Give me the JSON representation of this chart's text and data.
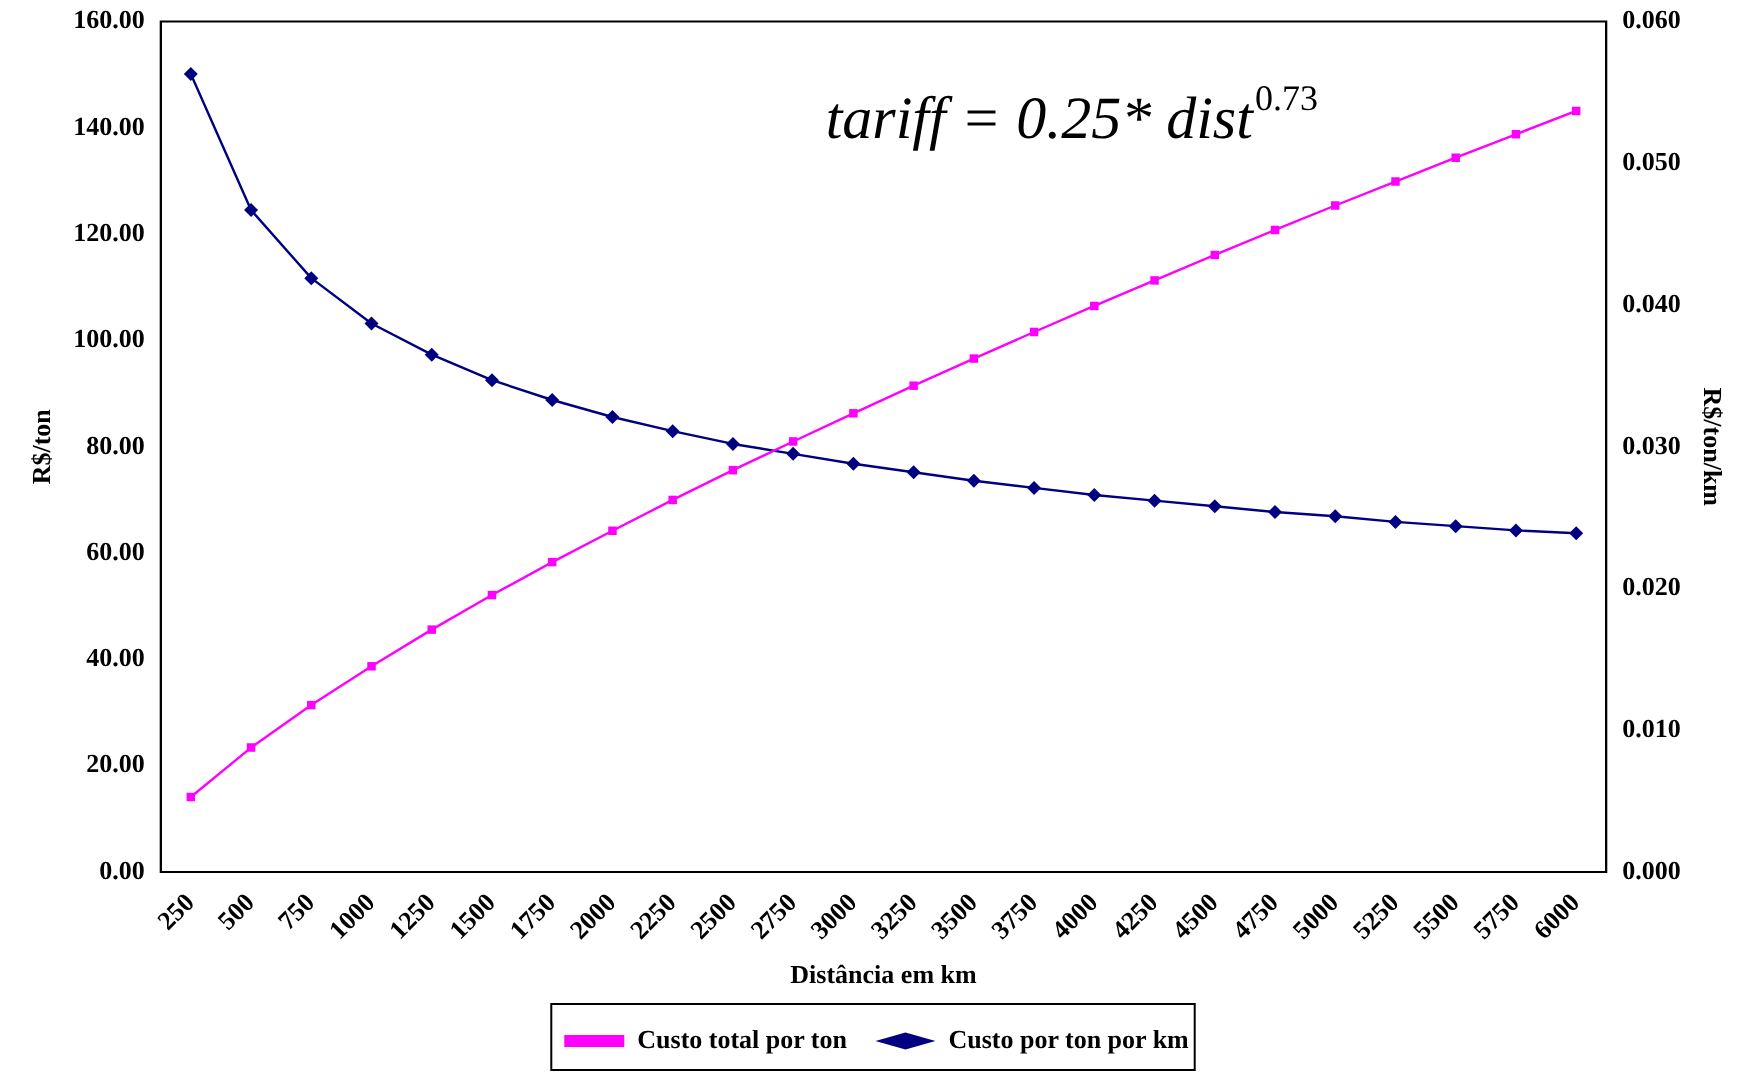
{
  "chart_data": {
    "type": "line",
    "xlabel": "Distância em km",
    "ylabel": "R$/ton",
    "y2label": "R$/ton/km",
    "annotations": [
      "tariff = 0.25* dist$^{0.73}$"
    ],
    "categories": [
      "250",
      "500",
      "750",
      "1000",
      "1250",
      "1500",
      "1750",
      "2000",
      "2250",
      "2500",
      "2750",
      "3000",
      "3250",
      "3500",
      "3750",
      "4000",
      "4250",
      "4500",
      "4750",
      "5000",
      "5250",
      "5500",
      "5750",
      "6000"
    ],
    "series": [
      {
        "name": "Custo total por ton",
        "color": "#ff00ff",
        "marker": "square",
        "values": [
          14.1,
          23.4,
          31.4,
          38.7,
          45.6,
          52.1,
          58.3,
          64.2,
          70.0,
          75.6,
          81.0,
          86.3,
          91.5,
          96.6,
          101.6,
          106.5,
          111.3,
          116.1,
          120.8,
          125.4,
          129.9,
          134.4,
          138.8,
          143.2
        ]
      },
      {
        "name": "Custo por ton por km",
        "color": "#000080",
        "marker": "diamond",
        "axis": "y2",
        "values": [
          0.0563,
          0.0467,
          0.0419,
          0.0387,
          0.0365,
          0.0347,
          0.0333,
          0.0321,
          0.0311,
          0.0302,
          0.0295,
          0.0288,
          0.0282,
          0.0276,
          0.0271,
          0.0266,
          0.0262,
          0.0258,
          0.0254,
          0.0251,
          0.0247,
          0.0244,
          0.0241,
          0.0239
        ]
      }
    ],
    "ylim": [
      0,
      160
    ],
    "yticks": [
      {
        "value": 0,
        "label": "0.00"
      },
      {
        "value": 20,
        "label": "20.00"
      },
      {
        "value": 40,
        "label": "40.00"
      },
      {
        "value": 60,
        "label": "60.00"
      },
      {
        "value": 80,
        "label": "80.00"
      },
      {
        "value": 100,
        "label": "100.00"
      },
      {
        "value": 120,
        "label": "120.00"
      },
      {
        "value": 140,
        "label": "140.00"
      },
      {
        "value": 160,
        "label": "160.00"
      }
    ],
    "y2lim": [
      0,
      0.06
    ],
    "y2ticks": [
      {
        "value": 0,
        "label": "0.000"
      },
      {
        "value": 0.01,
        "label": "0.010"
      },
      {
        "value": 0.02,
        "label": "0.020"
      },
      {
        "value": 0.03,
        "label": "0.030"
      },
      {
        "value": 0.04,
        "label": "0.040"
      },
      {
        "value": 0.05,
        "label": "0.050"
      },
      {
        "value": 0.06,
        "label": "0.060"
      }
    ],
    "grid": false,
    "legend": "bottom",
    "line_style": "solid"
  }
}
